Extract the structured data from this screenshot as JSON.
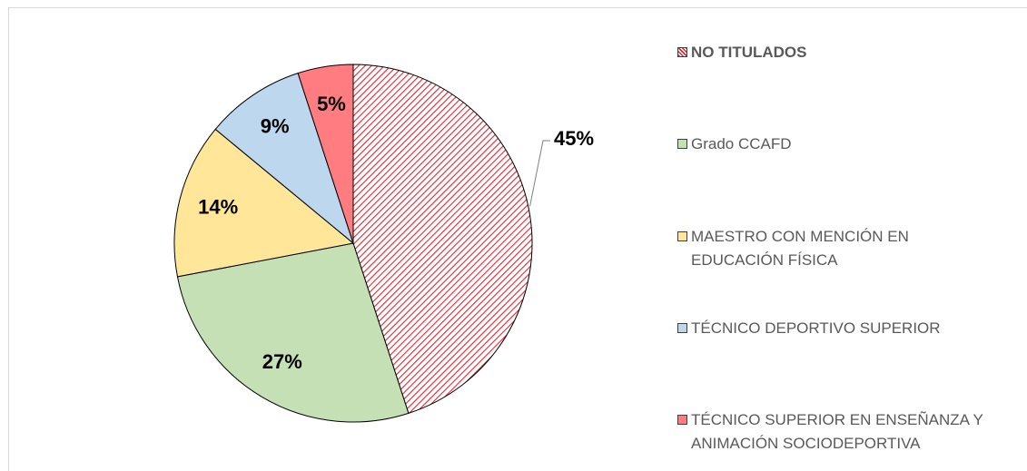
{
  "chart_data": {
    "type": "pie",
    "categories": [
      "NO TITULADOS",
      "Grado CCAFD",
      "MAESTRO CON MENCIÓN EN EDUCACIÓN FÍSICA",
      "TÉCNICO DEPORTIVO SUPERIOR",
      "TÉCNICO SUPERIOR EN ENSEÑANZA Y ANIMACIÓN SOCIODEPORTIVA"
    ],
    "values": [
      45,
      27,
      14,
      9,
      5
    ],
    "value_labels": [
      "45%",
      "27%",
      "14%",
      "9%",
      "5%"
    ],
    "colors": [
      "hatch-red",
      "#c5e0b4",
      "#ffe699",
      "#bdd7ee",
      "#ff7c80"
    ],
    "legend": "right"
  }
}
